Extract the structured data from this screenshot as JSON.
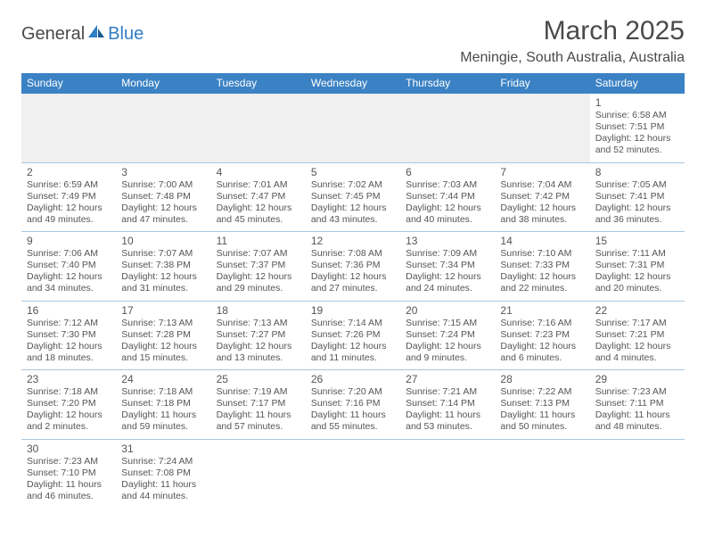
{
  "brand": {
    "part1": "General",
    "part2": "Blue"
  },
  "title": "March 2025",
  "location": "Meningie, South Australia, Australia",
  "colors": {
    "header_bg": "#3b82c4",
    "header_text": "#ffffff",
    "border": "#a9c6e0",
    "text": "#555555",
    "empty_bg": "#f0f0f0"
  },
  "weekdays": [
    "Sunday",
    "Monday",
    "Tuesday",
    "Wednesday",
    "Thursday",
    "Friday",
    "Saturday"
  ],
  "weeks": [
    [
      null,
      null,
      null,
      null,
      null,
      null,
      {
        "n": "1",
        "sr": "6:58 AM",
        "ss": "7:51 PM",
        "dl": "12 hours and 52 minutes."
      }
    ],
    [
      {
        "n": "2",
        "sr": "6:59 AM",
        "ss": "7:49 PM",
        "dl": "12 hours and 49 minutes."
      },
      {
        "n": "3",
        "sr": "7:00 AM",
        "ss": "7:48 PM",
        "dl": "12 hours and 47 minutes."
      },
      {
        "n": "4",
        "sr": "7:01 AM",
        "ss": "7:47 PM",
        "dl": "12 hours and 45 minutes."
      },
      {
        "n": "5",
        "sr": "7:02 AM",
        "ss": "7:45 PM",
        "dl": "12 hours and 43 minutes."
      },
      {
        "n": "6",
        "sr": "7:03 AM",
        "ss": "7:44 PM",
        "dl": "12 hours and 40 minutes."
      },
      {
        "n": "7",
        "sr": "7:04 AM",
        "ss": "7:42 PM",
        "dl": "12 hours and 38 minutes."
      },
      {
        "n": "8",
        "sr": "7:05 AM",
        "ss": "7:41 PM",
        "dl": "12 hours and 36 minutes."
      }
    ],
    [
      {
        "n": "9",
        "sr": "7:06 AM",
        "ss": "7:40 PM",
        "dl": "12 hours and 34 minutes."
      },
      {
        "n": "10",
        "sr": "7:07 AM",
        "ss": "7:38 PM",
        "dl": "12 hours and 31 minutes."
      },
      {
        "n": "11",
        "sr": "7:07 AM",
        "ss": "7:37 PM",
        "dl": "12 hours and 29 minutes."
      },
      {
        "n": "12",
        "sr": "7:08 AM",
        "ss": "7:36 PM",
        "dl": "12 hours and 27 minutes."
      },
      {
        "n": "13",
        "sr": "7:09 AM",
        "ss": "7:34 PM",
        "dl": "12 hours and 24 minutes."
      },
      {
        "n": "14",
        "sr": "7:10 AM",
        "ss": "7:33 PM",
        "dl": "12 hours and 22 minutes."
      },
      {
        "n": "15",
        "sr": "7:11 AM",
        "ss": "7:31 PM",
        "dl": "12 hours and 20 minutes."
      }
    ],
    [
      {
        "n": "16",
        "sr": "7:12 AM",
        "ss": "7:30 PM",
        "dl": "12 hours and 18 minutes."
      },
      {
        "n": "17",
        "sr": "7:13 AM",
        "ss": "7:28 PM",
        "dl": "12 hours and 15 minutes."
      },
      {
        "n": "18",
        "sr": "7:13 AM",
        "ss": "7:27 PM",
        "dl": "12 hours and 13 minutes."
      },
      {
        "n": "19",
        "sr": "7:14 AM",
        "ss": "7:26 PM",
        "dl": "12 hours and 11 minutes."
      },
      {
        "n": "20",
        "sr": "7:15 AM",
        "ss": "7:24 PM",
        "dl": "12 hours and 9 minutes."
      },
      {
        "n": "21",
        "sr": "7:16 AM",
        "ss": "7:23 PM",
        "dl": "12 hours and 6 minutes."
      },
      {
        "n": "22",
        "sr": "7:17 AM",
        "ss": "7:21 PM",
        "dl": "12 hours and 4 minutes."
      }
    ],
    [
      {
        "n": "23",
        "sr": "7:18 AM",
        "ss": "7:20 PM",
        "dl": "12 hours and 2 minutes."
      },
      {
        "n": "24",
        "sr": "7:18 AM",
        "ss": "7:18 PM",
        "dl": "11 hours and 59 minutes."
      },
      {
        "n": "25",
        "sr": "7:19 AM",
        "ss": "7:17 PM",
        "dl": "11 hours and 57 minutes."
      },
      {
        "n": "26",
        "sr": "7:20 AM",
        "ss": "7:16 PM",
        "dl": "11 hours and 55 minutes."
      },
      {
        "n": "27",
        "sr": "7:21 AM",
        "ss": "7:14 PM",
        "dl": "11 hours and 53 minutes."
      },
      {
        "n": "28",
        "sr": "7:22 AM",
        "ss": "7:13 PM",
        "dl": "11 hours and 50 minutes."
      },
      {
        "n": "29",
        "sr": "7:23 AM",
        "ss": "7:11 PM",
        "dl": "11 hours and 48 minutes."
      }
    ],
    [
      {
        "n": "30",
        "sr": "7:23 AM",
        "ss": "7:10 PM",
        "dl": "11 hours and 46 minutes."
      },
      {
        "n": "31",
        "sr": "7:24 AM",
        "ss": "7:08 PM",
        "dl": "11 hours and 44 minutes."
      },
      null,
      null,
      null,
      null,
      null
    ]
  ],
  "labels": {
    "sunrise": "Sunrise:",
    "sunset": "Sunset:",
    "daylight": "Daylight:"
  }
}
